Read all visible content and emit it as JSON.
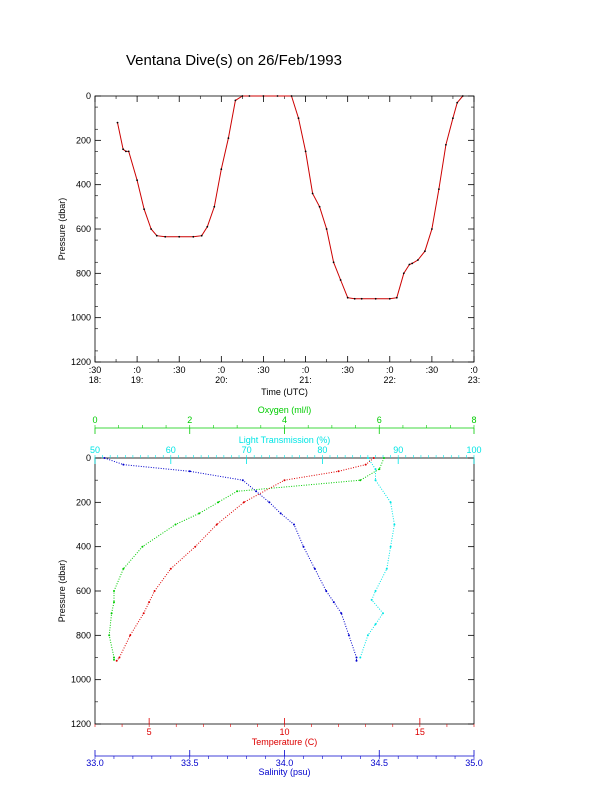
{
  "title": "Ventana Dive(s) on 26/Feb/1993",
  "colors": {
    "axis": "#000000",
    "depth_trace": "#cc0000",
    "depth_points": "#000000",
    "oxygen": "#00cc00",
    "light_transmission": "#00e5e5",
    "temperature": "#dd0000",
    "salinity": "#0000cc"
  },
  "chart_data": [
    {
      "type": "line",
      "title": "Ventana Dive(s) on 26/Feb/1993",
      "xlabel": "Time (UTC)",
      "ylabel": "Pressure (dbar)",
      "x_unit": "minutes since 18:30 UTC",
      "xlim": [
        0,
        270
      ],
      "ylim": [
        1200,
        0
      ],
      "x_tick_labels": [
        {
          "minute": ":30",
          "hour": "18:"
        },
        {
          "minute": ":0",
          "hour": "19:"
        },
        {
          "minute": ":30",
          "hour": ""
        },
        {
          "minute": ":0",
          "hour": "20:"
        },
        {
          "minute": ":30",
          "hour": ""
        },
        {
          "minute": ":0",
          "hour": "21:"
        },
        {
          "minute": ":30",
          "hour": ""
        },
        {
          "minute": ":0",
          "hour": "22:"
        },
        {
          "minute": ":30",
          "hour": ""
        },
        {
          "minute": ":0",
          "hour": "23:"
        }
      ],
      "y_ticks": [
        0,
        200,
        400,
        600,
        800,
        1000,
        1200
      ],
      "series": [
        {
          "x": [
            16,
            20,
            22,
            24,
            30,
            35,
            40,
            44,
            50,
            60,
            70,
            76,
            80,
            85,
            90,
            95,
            100,
            105,
            110,
            120,
            130,
            140,
            145,
            150,
            155,
            160,
            165,
            170,
            175,
            180,
            185,
            190,
            200,
            210,
            215,
            220,
            224,
            226,
            230,
            235,
            240,
            245,
            250,
            255,
            258,
            262
          ],
          "y": [
            120,
            240,
            250,
            250,
            380,
            510,
            600,
            630,
            635,
            635,
            635,
            630,
            590,
            500,
            330,
            190,
            20,
            0,
            0,
            0,
            0,
            0,
            100,
            250,
            440,
            500,
            600,
            750,
            830,
            910,
            915,
            915,
            915,
            915,
            910,
            800,
            760,
            755,
            740,
            700,
            600,
            420,
            220,
            100,
            30,
            0
          ]
        }
      ]
    },
    {
      "type": "scatter",
      "ylabel": "Pressure (dbar)",
      "ylim": [
        1200,
        0
      ],
      "y_ticks": [
        0,
        200,
        400,
        600,
        800,
        1000,
        1200
      ],
      "axes": {
        "oxygen": {
          "label": "Oxygen (ml/l)",
          "lim": [
            0,
            8
          ],
          "ticks": [
            0,
            2,
            4,
            6,
            8
          ]
        },
        "light_transmission": {
          "label": "Light Transmission (%)",
          "lim": [
            50,
            100
          ],
          "ticks": [
            50,
            60,
            70,
            80,
            90,
            100
          ]
        },
        "temperature": {
          "label": "Temperature (C)",
          "lim": [
            3,
            17
          ],
          "ticks": [
            5,
            10,
            15
          ]
        },
        "salinity": {
          "label": "Salinity (psu)",
          "lim": [
            33.0,
            35.0
          ],
          "ticks": [
            "33.0",
            "33.5",
            "34.0",
            "34.5",
            "35.0"
          ]
        }
      },
      "series": [
        {
          "axis": "oxygen",
          "p": [
            0,
            50,
            100,
            150,
            200,
            250,
            300,
            400,
            500,
            600,
            650,
            700,
            800,
            900,
            910
          ],
          "v": [
            6.1,
            6.0,
            5.6,
            3.0,
            2.6,
            2.2,
            1.7,
            1.0,
            0.6,
            0.4,
            0.4,
            0.35,
            0.3,
            0.4,
            0.4
          ]
        },
        {
          "axis": "light_transmission",
          "p": [
            0,
            50,
            100,
            200,
            300,
            400,
            500,
            600,
            640,
            700,
            750,
            800,
            900
          ],
          "v": [
            86,
            87,
            87,
            89,
            89.5,
            89,
            88.5,
            87,
            86.5,
            88,
            87,
            86,
            85
          ]
        },
        {
          "axis": "temperature",
          "p": [
            0,
            30,
            60,
            100,
            200,
            300,
            400,
            500,
            600,
            650,
            700,
            800,
            900,
            915
          ],
          "v": [
            13.3,
            13.0,
            12.0,
            10.0,
            8.5,
            7.5,
            6.7,
            5.8,
            5.2,
            5.0,
            4.8,
            4.3,
            3.9,
            3.8
          ]
        },
        {
          "axis": "salinity",
          "p": [
            0,
            30,
            60,
            100,
            150,
            200,
            250,
            300,
            400,
            500,
            600,
            650,
            700,
            800,
            900,
            915
          ],
          "v": [
            33.05,
            33.15,
            33.5,
            33.78,
            33.85,
            33.92,
            33.98,
            34.05,
            34.1,
            34.16,
            34.22,
            34.26,
            34.3,
            34.34,
            34.38,
            34.38
          ]
        }
      ]
    }
  ]
}
